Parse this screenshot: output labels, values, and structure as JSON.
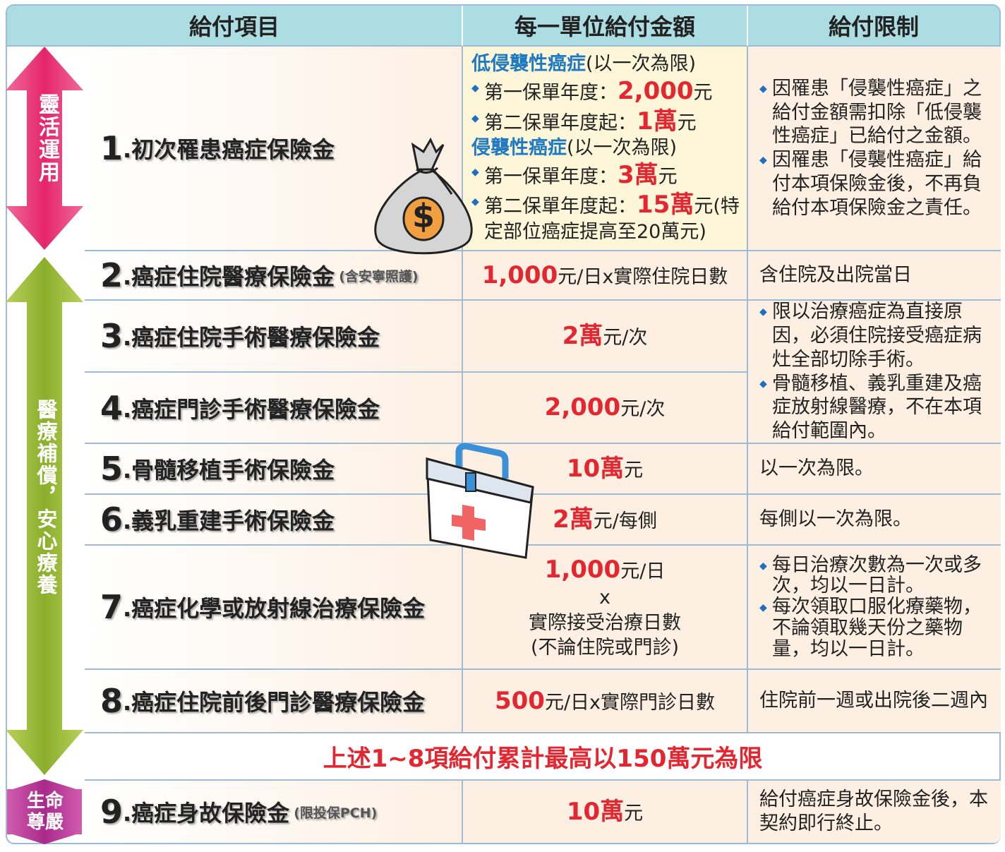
{
  "header": [
    "給付項目",
    "每一單位給付金額",
    "給付限制"
  ],
  "side": [
    "靈活運用",
    "醫療補償，安心療養",
    "生命尊嚴"
  ],
  "rows": [
    {
      "num": "1",
      "name": ".初次罹患癌症保險金",
      "amount": [
        [
          "低侵襲性癌症",
          "(以一次為限)"
        ],
        [
          "第一保單年度：",
          "2,000",
          "元"
        ],
        [
          "第二保單年度起：",
          "1萬",
          "元"
        ],
        [
          "侵襲性癌症",
          "(以一次為限)"
        ],
        [
          "第一保單年度：",
          "3萬",
          "元"
        ],
        [
          "第二保單年度起：",
          "15萬",
          "元(特"
        ],
        [
          "定部位癌症提高至20萬元)"
        ]
      ],
      "limits": [
        "因罹患「侵襲性癌症」之給付金額需扣除「低侵襲性癌症」已給付之金額。",
        "因罹患「侵襲性癌症」給付本項保險金後，不再負給付本項保險金之責任。"
      ]
    },
    {
      "num": "2",
      "name": ".癌症住院醫療保險金",
      "note": "(含安寧照護)",
      "amount": [
        [
          "1,000",
          "元/日x實際住院日數"
        ]
      ],
      "limits": [
        "含住院及出院當日"
      ]
    },
    {
      "num": "3",
      "name": ".癌症住院手術醫療保險金",
      "amount": [
        [
          "2萬",
          "元/次"
        ]
      ],
      "limits": [
        "限以治療癌症為直接原因，必須住院接受癌症病灶全部切除手術。",
        "骨髓移植、義乳重建及癌症放射線醫療，不在本項給付範圍內。"
      ]
    },
    {
      "num": "4",
      "name": ".癌症門診手術醫療保險金",
      "amount": [
        [
          "2,000",
          "元/次"
        ]
      ]
    },
    {
      "num": "5",
      "name": ".骨髓移植手術保險金",
      "amount": [
        [
          "10萬",
          "元"
        ]
      ],
      "limits": [
        "以一次為限。"
      ]
    },
    {
      "num": "6",
      "name": ".義乳重建手術保險金",
      "amount": [
        [
          "2萬",
          "元/每側"
        ]
      ],
      "limits": [
        "每側以一次為限。"
      ]
    },
    {
      "num": "7",
      "name": ".癌症化學或放射線治療保險金",
      "amount": [
        [
          "1,000",
          "元/日"
        ],
        [
          "x"
        ],
        [
          "實際接受治療日數"
        ],
        [
          "(不論住院或門診)"
        ]
      ],
      "limits": [
        "每日治療次數為一次或多次，均以一日計。",
        "每次領取口服化療藥物，不論領取幾天份之藥物量，均以一日計。"
      ]
    },
    {
      "num": "8",
      "name": ".癌症住院前後門診醫療保險金",
      "amount": [
        [
          "500",
          "元/日x實際門診日數"
        ]
      ],
      "limits": [
        "住院前一週或出院後二週內"
      ]
    },
    {
      "num": "9",
      "name": ".癌症身故保險金",
      "note": "(限投保PCH)",
      "amount": [
        [
          "10萬",
          "元"
        ]
      ],
      "limits": [
        "給付癌症身故保險金後，本契約即行終止。"
      ]
    }
  ],
  "total": "上述1~8項給付累計最高以150萬元為限"
}
